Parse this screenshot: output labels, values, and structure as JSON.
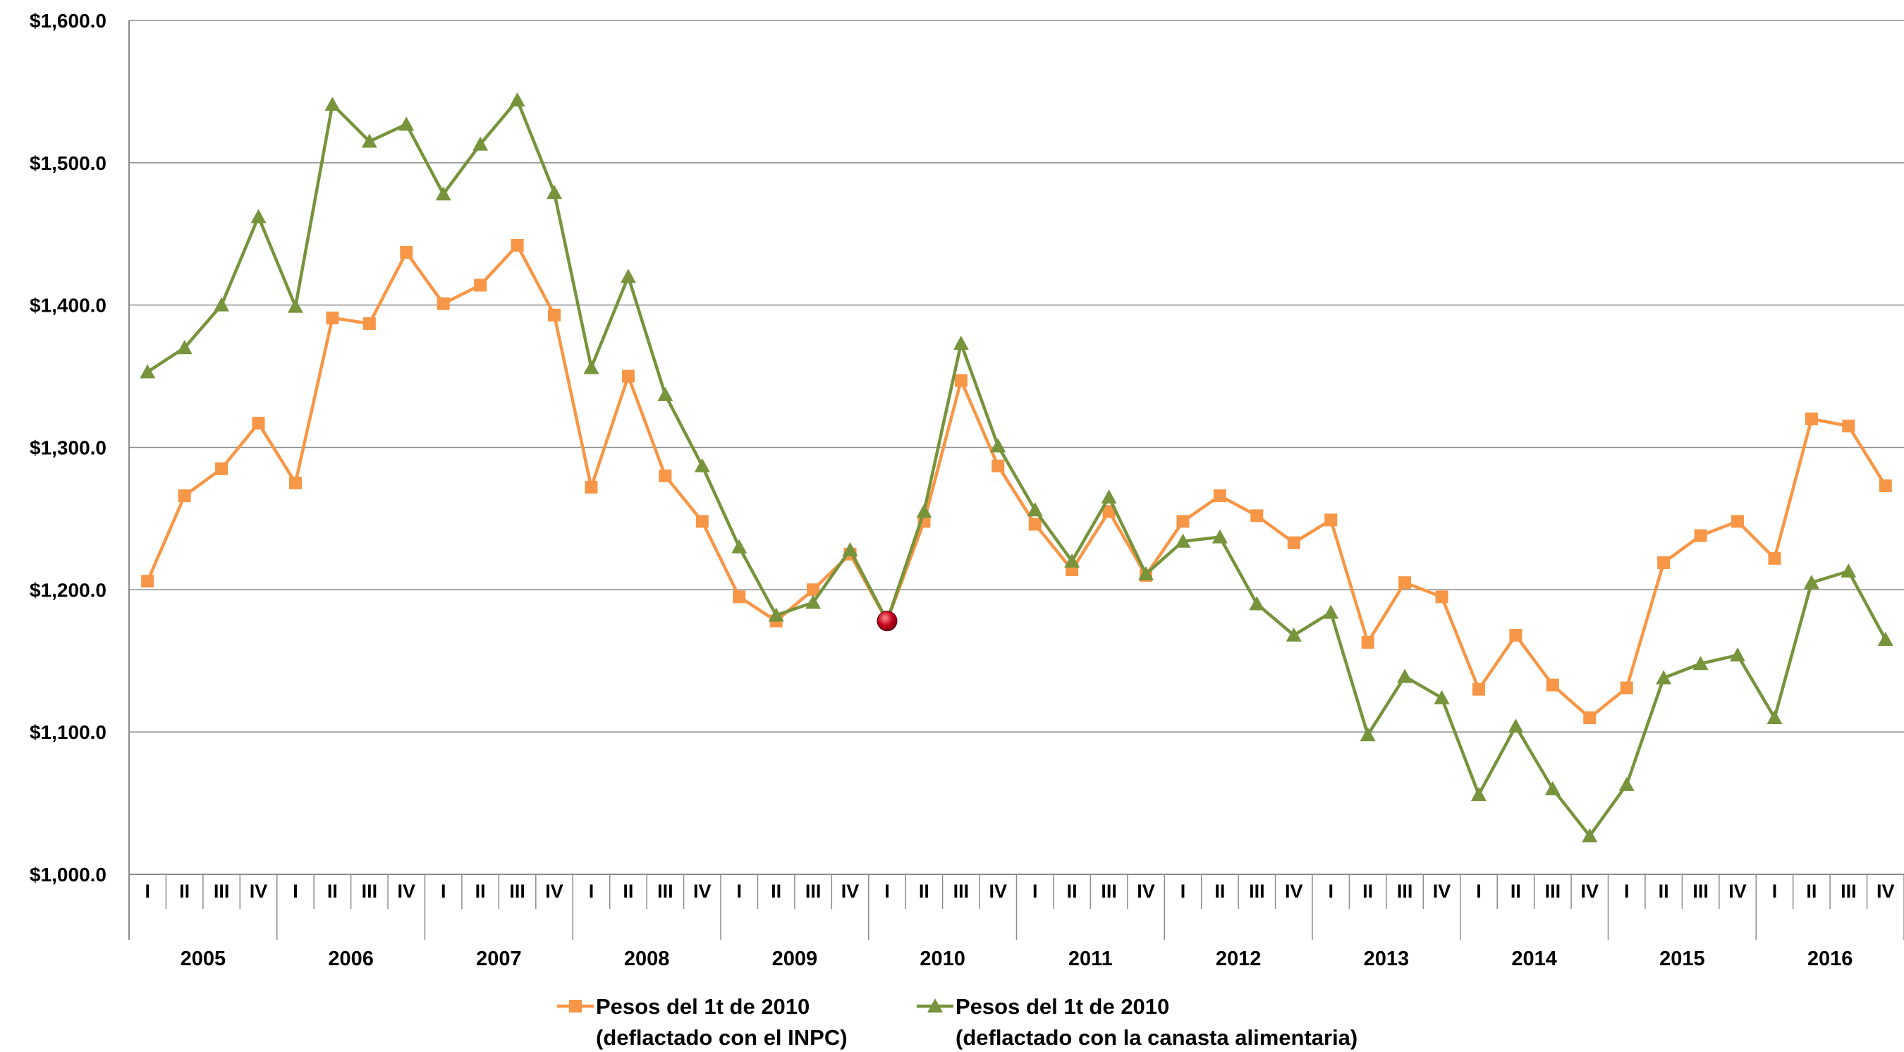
{
  "chart_data": {
    "type": "line",
    "title": "",
    "xlabel": "",
    "ylabel": "",
    "ylim": [
      1000,
      1600
    ],
    "y_ticks": [
      1000,
      1100,
      1200,
      1300,
      1400,
      1500,
      1600
    ],
    "y_tick_labels": [
      "$1,000.0",
      "$1,100.0",
      "$1,200.0",
      "$1,300.0",
      "$1,400.0",
      "$1,500.0",
      "$1,600.0"
    ],
    "grid": true,
    "legend_position": "bottom",
    "years": [
      "2005",
      "2006",
      "2007",
      "2008",
      "2009",
      "2010",
      "2011",
      "2012",
      "2013",
      "2014",
      "2015",
      "2016"
    ],
    "quarters": [
      "I",
      "II",
      "III",
      "IV"
    ],
    "series": [
      {
        "name": "Pesos del 1t de 2010 (deflactado con el INPC)",
        "legend_lines": [
          "Pesos del 1t de 2010",
          "(deflactado con el INPC)"
        ],
        "color": "#F79646",
        "marker": "square",
        "values": [
          1206,
          1266,
          1285,
          1317,
          1275,
          1391,
          1387,
          1437,
          1401,
          1414,
          1442,
          1393,
          1272,
          1350,
          1280,
          1248,
          1195,
          1178,
          1200,
          1225,
          1178,
          1248,
          1347,
          1287,
          1246,
          1214,
          1255,
          1210,
          1248,
          1266,
          1252,
          1233,
          1249,
          1163,
          1205,
          1195,
          1130,
          1168,
          1133,
          1110,
          1131,
          1219,
          1238,
          1248,
          1222,
          1320,
          1315,
          1273
        ]
      },
      {
        "name": "Pesos del 1t de 2010 (deflactado con la canasta alimentaria)",
        "legend_lines": [
          "Pesos del 1t de 2010",
          "(deflactado con la canasta alimentaria)"
        ],
        "color": "#77933C",
        "marker": "triangle",
        "values": [
          1353,
          1370,
          1400,
          1462,
          1399,
          1541,
          1515,
          1527,
          1478,
          1513,
          1544,
          1479,
          1356,
          1420,
          1337,
          1287,
          1230,
          1182,
          1191,
          1228,
          1178,
          1255,
          1373,
          1301,
          1256,
          1220,
          1265,
          1211,
          1234,
          1237,
          1190,
          1168,
          1184,
          1098,
          1139,
          1124,
          1056,
          1104,
          1060,
          1027,
          1063,
          1138,
          1148,
          1154,
          1110,
          1205,
          1213,
          1165
        ]
      }
    ],
    "highlight": {
      "index": 20,
      "value": 1178,
      "color": "#C0001A"
    }
  }
}
